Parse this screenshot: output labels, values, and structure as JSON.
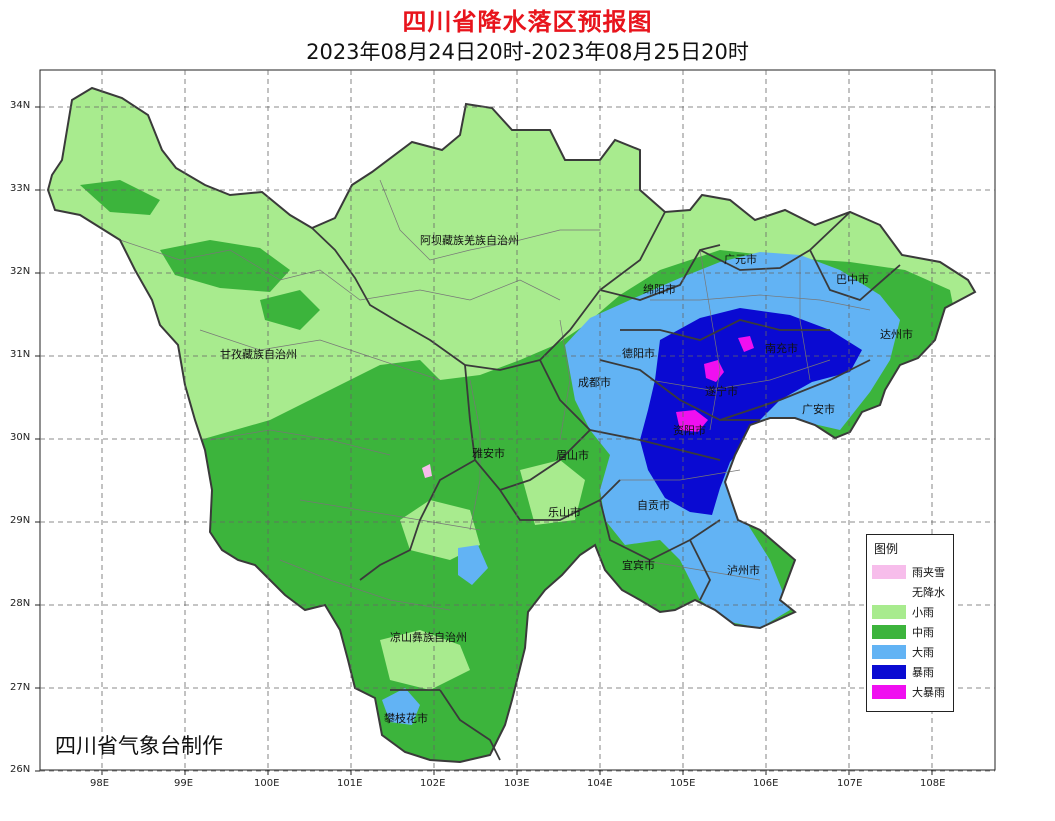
{
  "header": {
    "title": "四川省降水落区预报图",
    "subtitle": "2023年08月24日20时-2023年08月25日20时"
  },
  "credit": "四川省气象台制作",
  "axes": {
    "lat_labels": [
      "26N",
      "27N",
      "28N",
      "29N",
      "30N",
      "31N",
      "32N",
      "33N",
      "34N"
    ],
    "lon_labels": [
      "98E",
      "99E",
      "100E",
      "101E",
      "102E",
      "103E",
      "104E",
      "105E",
      "106E",
      "107E",
      "108E"
    ],
    "grid": "dashed"
  },
  "colors": {
    "rain_snow": "#f7bdeb",
    "none": "#ffffff",
    "light": "#a8eb8e",
    "moderate": "#3cb43c",
    "heavy": "#62b3f4",
    "storm": "#0a0ad2",
    "heavy_storm": "#f00ff0"
  },
  "legend": {
    "title": "图例",
    "items": [
      {
        "label": "雨夹雪",
        "color": "#f7bdeb"
      },
      {
        "label": "无降水",
        "color": "#ffffff"
      },
      {
        "label": "小雨",
        "color": "#a8eb8e"
      },
      {
        "label": "中雨",
        "color": "#3cb43c"
      },
      {
        "label": "大雨",
        "color": "#62b3f4"
      },
      {
        "label": "暴雨",
        "color": "#0a0ad2"
      },
      {
        "label": "大暴雨",
        "color": "#f00ff0"
      }
    ]
  },
  "cities": [
    {
      "name": "阿坝藏族羌族自治州"
    },
    {
      "name": "甘孜藏族自治州"
    },
    {
      "name": "广元市"
    },
    {
      "name": "巴中市"
    },
    {
      "name": "绵阳市"
    },
    {
      "name": "达州市"
    },
    {
      "name": "德阳市"
    },
    {
      "name": "南充市"
    },
    {
      "name": "成都市"
    },
    {
      "name": "遂宁市"
    },
    {
      "name": "广安市"
    },
    {
      "name": "资阳市"
    },
    {
      "name": "雅安市"
    },
    {
      "name": "眉山市"
    },
    {
      "name": "乐山市"
    },
    {
      "name": "自贡市"
    },
    {
      "name": "宜宾市"
    },
    {
      "name": "泸州市"
    },
    {
      "name": "凉山彝族自治州"
    },
    {
      "name": "攀枝花市"
    }
  ]
}
